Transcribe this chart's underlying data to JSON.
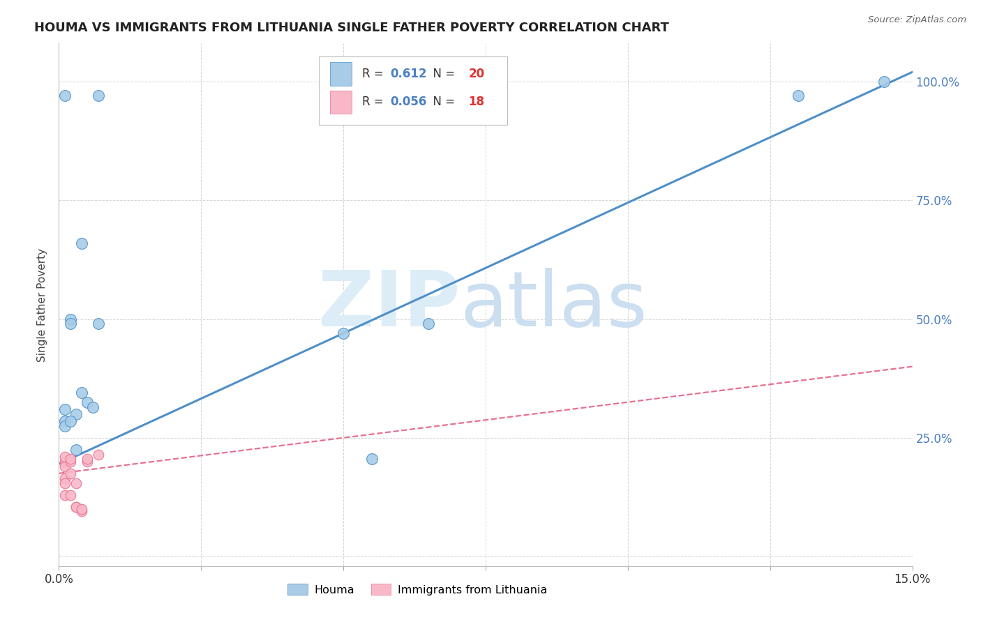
{
  "title": "HOUMA VS IMMIGRANTS FROM LITHUANIA SINGLE FATHER POVERTY CORRELATION CHART",
  "source": "Source: ZipAtlas.com",
  "ylabel_label": "Single Father Poverty",
  "xlim": [
    0.0,
    0.15
  ],
  "ylim": [
    -0.02,
    1.08
  ],
  "plot_ylim": [
    0.0,
    1.0
  ],
  "xtick_positions": [
    0.0,
    0.025,
    0.05,
    0.075,
    0.1,
    0.125,
    0.15
  ],
  "xtick_labels": [
    "0.0%",
    "",
    "",
    "",
    "",
    "",
    "15.0%"
  ],
  "ytick_positions": [
    0.0,
    0.25,
    0.5,
    0.75,
    1.0
  ],
  "ytick_labels": [
    "",
    "25.0%",
    "50.0%",
    "75.0%",
    "100.0%"
  ],
  "houma_color": "#a8cce8",
  "lithuania_color": "#f9b8c8",
  "houma_line_color": "#4e8fc7",
  "lithuania_line_color": "#e87090",
  "houma_R": 0.612,
  "houma_N": 20,
  "lithuania_R": 0.056,
  "lithuania_N": 18,
  "legend_R_color": "#4a7fc1",
  "legend_N_color": "#e03030",
  "houma_x": [
    0.003,
    0.001,
    0.002,
    0.001,
    0.001,
    0.002,
    0.002,
    0.001,
    0.004,
    0.005,
    0.004,
    0.006,
    0.007,
    0.003,
    0.05,
    0.055,
    0.065,
    0.007,
    0.13,
    0.145
  ],
  "houma_y": [
    0.3,
    0.97,
    0.5,
    0.285,
    0.275,
    0.285,
    0.49,
    0.31,
    0.345,
    0.325,
    0.66,
    0.315,
    0.49,
    0.225,
    0.47,
    0.205,
    0.49,
    0.97,
    0.97,
    1.0
  ],
  "lithuania_x": [
    0.001,
    0.001,
    0.001,
    0.002,
    0.001,
    0.001,
    0.001,
    0.002,
    0.003,
    0.003,
    0.003,
    0.002,
    0.002,
    0.004,
    0.004,
    0.005,
    0.005,
    0.007
  ],
  "lithuania_y": [
    0.2,
    0.19,
    0.165,
    0.175,
    0.155,
    0.21,
    0.13,
    0.13,
    0.105,
    0.105,
    0.155,
    0.2,
    0.205,
    0.095,
    0.1,
    0.2,
    0.205,
    0.215
  ],
  "houma_intercept": 0.195,
  "houma_slope": 5.5,
  "lithuania_intercept": 0.175,
  "lithuania_slope": 1.5,
  "background_color": "#ffffff",
  "grid_color": "#cccccc",
  "watermark_zip": "ZIP",
  "watermark_atlas": "atlas",
  "watermark_color": "#ddedf8",
  "right_axis_color": "#4a7fc1"
}
